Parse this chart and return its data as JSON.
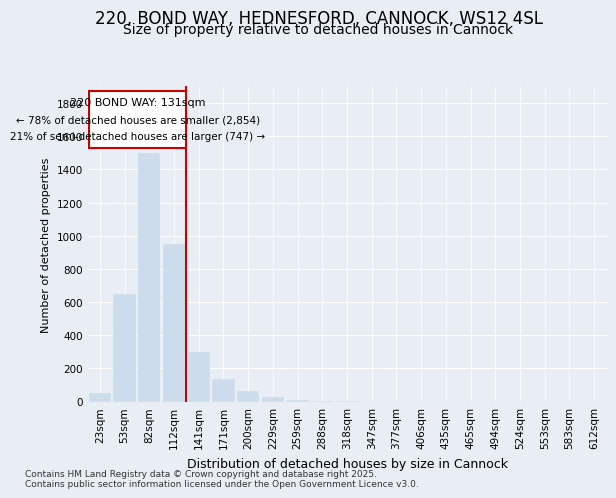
{
  "title_line1": "220, BOND WAY, HEDNESFORD, CANNOCK, WS12 4SL",
  "title_line2": "Size of property relative to detached houses in Cannock",
  "xlabel": "Distribution of detached houses by size in Cannock",
  "ylabel": "Number of detached properties",
  "categories": [
    "23sqm",
    "53sqm",
    "82sqm",
    "112sqm",
    "141sqm",
    "171sqm",
    "200sqm",
    "229sqm",
    "259sqm",
    "288sqm",
    "318sqm",
    "347sqm",
    "377sqm",
    "406sqm",
    "435sqm",
    "465sqm",
    "494sqm",
    "524sqm",
    "553sqm",
    "583sqm",
    "612sqm"
  ],
  "values": [
    50,
    650,
    1500,
    950,
    300,
    135,
    65,
    25,
    8,
    3,
    2,
    0,
    0,
    0,
    0,
    0,
    0,
    0,
    0,
    0,
    0
  ],
  "bar_color": "#ccdcec",
  "marker_color": "#cc0000",
  "marker_index": 3.5,
  "annotation_title": "220 BOND WAY: 131sqm",
  "annotation_line1": "← 78% of detached houses are smaller (2,854)",
  "annotation_line2": "21% of semi-detached houses are larger (747) →",
  "ylim": [
    0,
    1900
  ],
  "yticks": [
    0,
    200,
    400,
    600,
    800,
    1000,
    1200,
    1400,
    1600,
    1800
  ],
  "footer_line1": "Contains HM Land Registry data © Crown copyright and database right 2025.",
  "footer_line2": "Contains public sector information licensed under the Open Government Licence v3.0.",
  "background_color": "#e8eef4",
  "grid_color": "#ffffff",
  "title1_fontsize": 12,
  "title2_fontsize": 10,
  "xlabel_fontsize": 9,
  "ylabel_fontsize": 8,
  "tick_fontsize": 7.5,
  "ann_fontsize_title": 8,
  "ann_fontsize_body": 7.5,
  "footer_fontsize": 6.5
}
